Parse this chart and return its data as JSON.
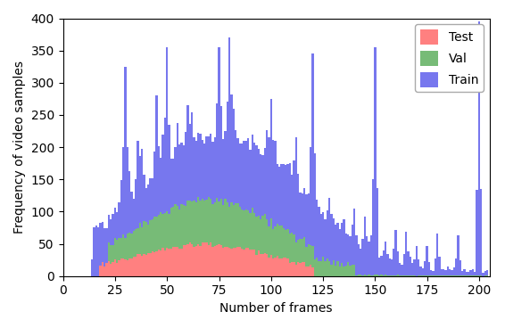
{
  "xlabel": "Number of frames",
  "ylabel": "Frequency of video samples",
  "xlim": [
    0,
    205
  ],
  "ylim": [
    0,
    400
  ],
  "xticks": [
    0,
    25,
    50,
    75,
    100,
    125,
    150,
    175,
    200
  ],
  "yticks": [
    0,
    50,
    100,
    150,
    200,
    250,
    300,
    350,
    400
  ],
  "legend_labels": [
    "Test",
    "Val",
    "Train"
  ],
  "bar_color_test": "#ff8080",
  "bar_color_val": "#77bb77",
  "bar_color_train": "#7777ee",
  "figsize": [
    5.66,
    3.68
  ],
  "dpi": 100,
  "spike_frames": [
    30,
    36,
    45,
    50,
    60,
    72,
    75,
    80,
    90,
    100,
    112,
    120,
    150,
    200
  ],
  "spike_heights": [
    325,
    210,
    280,
    355,
    265,
    215,
    355,
    370,
    215,
    275,
    215,
    345,
    355,
    395
  ]
}
